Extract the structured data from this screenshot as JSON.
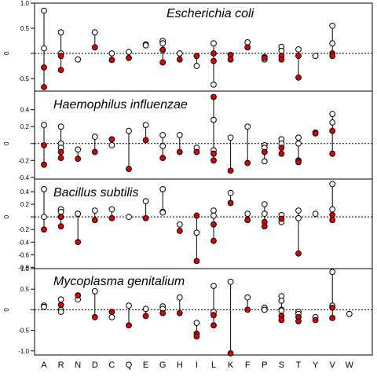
{
  "colors": {
    "filled": "#dd0000",
    "open_fill": "#ffffff",
    "stroke": "#000000"
  },
  "x_categories": [
    "A",
    "R",
    "N",
    "D",
    "C",
    "Q",
    "E",
    "G",
    "H",
    "I",
    "L",
    "K",
    "F",
    "P",
    "S",
    "T",
    "Y",
    "V",
    "W"
  ],
  "chart_data": [
    {
      "type": "scatter",
      "title": "Escherichia coli",
      "ylabel": "0",
      "ylim": [
        -0.75,
        1.0
      ],
      "ticks": [
        -0.5,
        0,
        0.5,
        1.0
      ],
      "tick_labels": [
        "-0.5",
        "",
        "0.5",
        "1.0"
      ],
      "reference_line": 0,
      "points": [
        {
          "x": "A",
          "open": [
            0.85,
            0.1
          ],
          "filled": [
            -0.28,
            -0.67
          ]
        },
        {
          "x": "R",
          "open": [
            0.42,
            0.0
          ],
          "filled": [
            -0.05,
            -0.33
          ]
        },
        {
          "x": "N",
          "open": [
            -0.12
          ],
          "filled": []
        },
        {
          "x": "D",
          "open": [
            0.42
          ],
          "filled": [
            0.12
          ]
        },
        {
          "x": "C",
          "open": [
            0.0
          ],
          "filled": [
            -0.13
          ]
        },
        {
          "x": "Q",
          "open": [
            0.03
          ],
          "filled": [
            -0.09
          ]
        },
        {
          "x": "E",
          "open": [
            0.18,
            0.16
          ],
          "filled": []
        },
        {
          "x": "G",
          "open": [
            0.25,
            0.2
          ],
          "filled": [
            0.07,
            -0.18
          ]
        },
        {
          "x": "H",
          "open": [
            0.0
          ],
          "filled": [
            -0.12
          ]
        },
        {
          "x": "I",
          "open": [
            -0.25
          ],
          "filled": [
            -0.05
          ]
        },
        {
          "x": "L",
          "open": [
            0.2,
            -0.62
          ],
          "filled": [
            0.0,
            -0.15
          ]
        },
        {
          "x": "K",
          "open": [],
          "filled": [
            -0.03,
            -0.12
          ]
        },
        {
          "x": "F",
          "open": [
            0.22
          ],
          "filled": [
            0.12
          ]
        },
        {
          "x": "P",
          "open": [
            -0.07,
            -0.12
          ],
          "filled": [
            -0.09
          ]
        },
        {
          "x": "S",
          "open": [
            0.13,
            0.05
          ],
          "filled": [
            -0.05,
            -0.12
          ]
        },
        {
          "x": "T",
          "open": [
            0.08
          ],
          "filled": [
            -0.05,
            -0.48
          ]
        },
        {
          "x": "Y",
          "open": [
            -0.05
          ],
          "filled": []
        },
        {
          "x": "V",
          "open": [
            0.55,
            0.2
          ],
          "filled": [
            0.0,
            -0.05
          ]
        },
        {
          "x": "W",
          "open": [],
          "filled": []
        }
      ]
    },
    {
      "type": "scatter",
      "title": "Haemophilus influenzae",
      "ylabel": "0",
      "ylim": [
        -0.42,
        0.62
      ],
      "ticks": [
        -0.4,
        -0.2,
        0,
        0.2,
        0.4
      ],
      "tick_labels": [
        "-0.4",
        "-0.2",
        "",
        "0.2",
        "0.4"
      ],
      "reference_line": 0,
      "points": [
        {
          "x": "A",
          "open": [
            0.22
          ],
          "filled": [
            -0.02,
            -0.25
          ]
        },
        {
          "x": "R",
          "open": [
            0.2,
            0.0,
            -0.05
          ],
          "filled": [
            -0.1,
            -0.17
          ]
        },
        {
          "x": "N",
          "open": [
            -0.07
          ],
          "filled": [
            -0.18
          ]
        },
        {
          "x": "D",
          "open": [
            0.08
          ],
          "filled": [
            -0.1
          ]
        },
        {
          "x": "C",
          "open": [
            -0.02
          ],
          "filled": [
            0.05
          ]
        },
        {
          "x": "Q",
          "open": [
            0.15
          ],
          "filled": [
            -0.3
          ]
        },
        {
          "x": "E",
          "open": [
            0.22
          ],
          "filled": [
            0.04
          ]
        },
        {
          "x": "G",
          "open": [
            0.1,
            -0.03
          ],
          "filled": [
            -0.17
          ]
        },
        {
          "x": "H",
          "open": [
            0.1
          ],
          "filled": [
            -0.1
          ]
        },
        {
          "x": "I",
          "open": [
            -0.05
          ],
          "filled": [
            -0.1
          ]
        },
        {
          "x": "L",
          "open": [
            0.28,
            -0.08
          ],
          "filled": [
            0.55,
            -0.12,
            -0.2
          ]
        },
        {
          "x": "K",
          "open": [
            0.07
          ],
          "filled": [
            -0.32
          ]
        },
        {
          "x": "F",
          "open": [
            0.2
          ],
          "filled": [
            -0.23
          ]
        },
        {
          "x": "P",
          "open": [
            -0.02,
            -0.05,
            -0.21
          ],
          "filled": [
            -0.1
          ]
        },
        {
          "x": "S",
          "open": [
            0.05,
            0.0
          ],
          "filled": [
            -0.05,
            -0.12
          ]
        },
        {
          "x": "T",
          "open": [
            0.07,
            0.0
          ],
          "filled": [
            -0.2,
            -0.22
          ]
        },
        {
          "x": "Y",
          "open": [
            0.13
          ],
          "filled": [
            0.12
          ]
        },
        {
          "x": "V",
          "open": [
            0.35,
            0.25
          ],
          "filled": [
            0.15,
            -0.12
          ]
        },
        {
          "x": "W",
          "open": [],
          "filled": []
        }
      ]
    },
    {
      "type": "scatter",
      "title": "Bacillus subtilis",
      "ylabel": "0",
      "ylim": [
        -0.82,
        0.6
      ],
      "ticks": [
        -0.8,
        -0.6,
        -0.4,
        -0.2,
        0,
        0.2,
        0.4
      ],
      "tick_labels": [
        "-0.8",
        "-0.6",
        "-0.4",
        "-0.2",
        "",
        "0.2",
        "0.4"
      ],
      "reference_line": 0,
      "points": [
        {
          "x": "A",
          "open": [
            0.44,
            0.0
          ],
          "filled": [
            -0.2
          ]
        },
        {
          "x": "R",
          "open": [
            0.12,
            0.08,
            0.0
          ],
          "filled": [
            0.0,
            -0.15
          ]
        },
        {
          "x": "N",
          "open": [
            0.05
          ],
          "filled": [
            -0.4
          ]
        },
        {
          "x": "D",
          "open": [
            0.1
          ],
          "filled": [
            -0.05
          ]
        },
        {
          "x": "C",
          "open": [
            0.12
          ],
          "filled": [
            -0.02
          ]
        },
        {
          "x": "Q",
          "open": [
            0.0
          ],
          "filled": []
        },
        {
          "x": "E",
          "open": [
            0.25
          ],
          "filled": [
            -0.02
          ]
        },
        {
          "x": "G",
          "open": [
            0.44,
            0.08,
            0.07
          ],
          "filled": []
        },
        {
          "x": "H",
          "open": [
            -0.12
          ],
          "filled": [
            -0.22
          ]
        },
        {
          "x": "I",
          "open": [
            -0.25
          ],
          "filled": [
            0.02,
            -0.7
          ]
        },
        {
          "x": "L",
          "open": [
            0.1,
            0.02
          ],
          "filled": [
            -0.12,
            -0.38
          ]
        },
        {
          "x": "K",
          "open": [
            0.38
          ],
          "filled": [
            0.22
          ]
        },
        {
          "x": "F",
          "open": [
            0.05
          ],
          "filled": [
            -0.05
          ]
        },
        {
          "x": "P",
          "open": [
            0.2,
            0.05
          ],
          "filled": [
            -0.08,
            -0.15
          ]
        },
        {
          "x": "S",
          "open": [
            0.03,
            -0.08
          ],
          "filled": [
            -0.03
          ]
        },
        {
          "x": "T",
          "open": [
            0.1,
            -0.02
          ],
          "filled": [
            -0.58
          ]
        },
        {
          "x": "Y",
          "open": [
            0.05
          ],
          "filled": []
        },
        {
          "x": "V",
          "open": [
            0.52,
            0.12
          ],
          "filled": [
            0.03,
            -0.05
          ]
        },
        {
          "x": "W",
          "open": [],
          "filled": []
        }
      ]
    },
    {
      "type": "scatter",
      "title": "Mycoplasma genitalium",
      "ylabel": "0",
      "ylim": [
        -1.1,
        1.0
      ],
      "ticks": [
        -1.0,
        -0.5,
        0,
        0.5,
        1.0
      ],
      "tick_labels": [
        "-1.0",
        "-0.5",
        "",
        "0.5",
        "1.0"
      ],
      "reference_line": 0,
      "points": [
        {
          "x": "A",
          "open": [
            0.1,
            0.07
          ],
          "filled": []
        },
        {
          "x": "R",
          "open": [
            0.25,
            0.0,
            -0.05
          ],
          "filled": [
            0.12
          ]
        },
        {
          "x": "N",
          "open": [
            0.25
          ],
          "filled": [
            0.35
          ]
        },
        {
          "x": "D",
          "open": [
            0.45
          ],
          "filled": [
            -0.18
          ]
        },
        {
          "x": "C",
          "open": [
            -0.18
          ],
          "filled": [
            -0.05
          ]
        },
        {
          "x": "Q",
          "open": [
            0.1
          ],
          "filled": [
            -0.38
          ]
        },
        {
          "x": "E",
          "open": [
            0.02
          ],
          "filled": [
            -0.15
          ]
        },
        {
          "x": "G",
          "open": [
            0.08,
            0.02
          ],
          "filled": [
            -0.08
          ]
        },
        {
          "x": "H",
          "open": [
            0.3
          ],
          "filled": [
            -0.08
          ]
        },
        {
          "x": "I",
          "open": [
            -0.32
          ],
          "filled": [
            -0.58,
            -0.65
          ]
        },
        {
          "x": "L",
          "open": [
            0.58,
            -0.05
          ],
          "filled": [
            -0.13,
            -0.38
          ]
        },
        {
          "x": "K",
          "open": [
            0.68
          ],
          "filled": [
            -1.06
          ]
        },
        {
          "x": "F",
          "open": [
            0.3
          ],
          "filled": [
            0.0
          ]
        },
        {
          "x": "P",
          "open": [
            0.05,
            0.0
          ],
          "filled": []
        },
        {
          "x": "S",
          "open": [
            0.33,
            0.22,
            0.0,
            -0.02
          ],
          "filled": [
            -0.15,
            -0.25
          ]
        },
        {
          "x": "T",
          "open": [
            -0.05,
            -0.1
          ],
          "filled": [
            -0.18,
            -0.28
          ]
        },
        {
          "x": "Y",
          "open": [
            -0.18
          ],
          "filled": [
            -0.25
          ]
        },
        {
          "x": "V",
          "open": [
            0.92,
            0.1
          ],
          "filled": [
            0.05,
            -0.2
          ]
        },
        {
          "x": "W",
          "open": [
            -0.1
          ],
          "filled": []
        }
      ]
    }
  ]
}
